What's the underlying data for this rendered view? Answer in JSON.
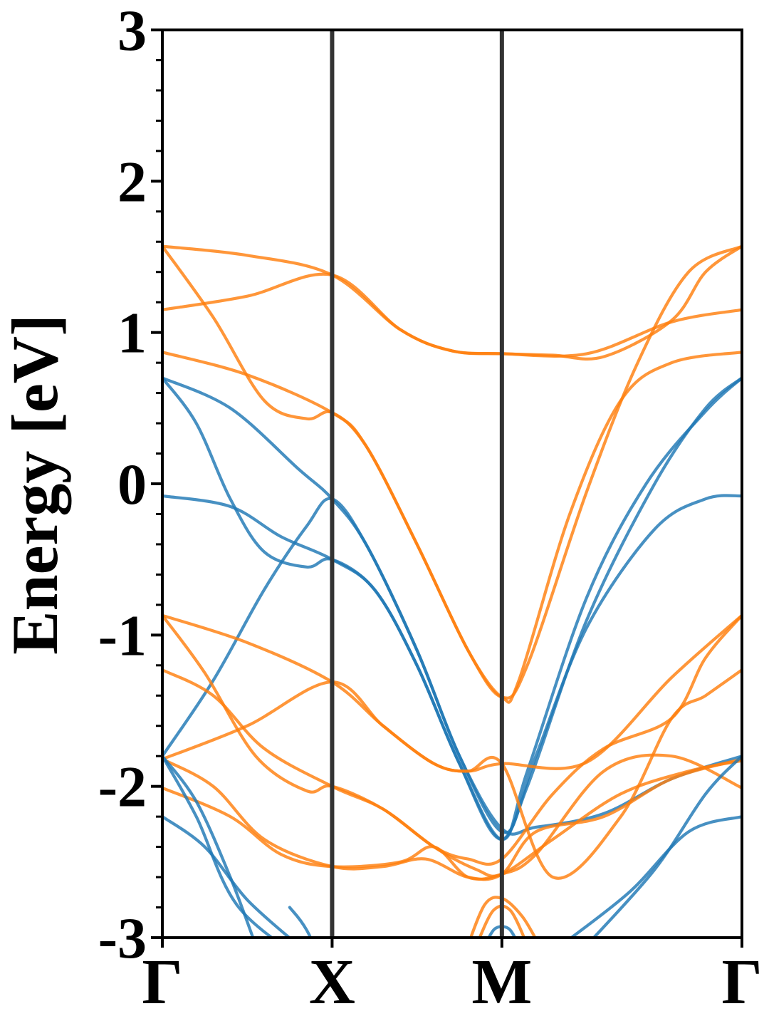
{
  "chart_data": {
    "type": "line",
    "title": "",
    "xlabel": "",
    "ylabel": "Energy [eV]",
    "ylim": [
      -3,
      3
    ],
    "y_ticks": [
      "3",
      "2",
      "1",
      "0",
      "-1",
      "-2",
      "-3"
    ],
    "y_tick_values": [
      3,
      2,
      1,
      0,
      -1,
      -2,
      -3
    ],
    "k_path": [
      {
        "label": "Γ",
        "pos": 0.0
      },
      {
        "label": "X",
        "pos": 1.0
      },
      {
        "label": "M",
        "pos": 2.0
      },
      {
        "label": "Γ",
        "pos": 3.414
      }
    ],
    "grid": false,
    "legend": "none",
    "colors": {
      "blue": "#1f77b4",
      "orange": "#ff7f0e",
      "kline": "#333333"
    },
    "series": [
      {
        "color": "orange",
        "points": [
          [
            0,
            1.57
          ],
          [
            0.5,
            1.51
          ],
          [
            1,
            1.38
          ],
          [
            1.4,
            1.02
          ],
          [
            1.7,
            0.88
          ],
          [
            2,
            0.86
          ],
          [
            2.5,
            0.86
          ],
          [
            3,
            1.07
          ],
          [
            3.414,
            1.15
          ]
        ]
      },
      {
        "color": "orange",
        "points": [
          [
            0,
            1.15
          ],
          [
            0.5,
            1.24
          ],
          [
            1,
            1.38
          ],
          [
            1.4,
            1.02
          ],
          [
            1.7,
            0.88
          ],
          [
            2,
            0.86
          ],
          [
            2.3,
            0.85
          ],
          [
            2.6,
            0.84
          ],
          [
            3,
            1.08
          ],
          [
            3.2,
            1.4
          ],
          [
            3.414,
            1.57
          ]
        ]
      },
      {
        "color": "orange",
        "points": [
          [
            0,
            0.87
          ],
          [
            0.5,
            0.72
          ],
          [
            1,
            0.47
          ],
          [
            1.2,
            0.25
          ],
          [
            1.5,
            -0.4
          ],
          [
            1.8,
            -1.1
          ],
          [
            2,
            -1.41
          ],
          [
            2.1,
            -1.3
          ],
          [
            2.4,
            -0.2
          ],
          [
            2.7,
            0.55
          ],
          [
            3,
            0.8
          ],
          [
            3.414,
            0.87
          ]
        ]
      },
      {
        "color": "orange",
        "points": [
          [
            0,
            1.57
          ],
          [
            0.3,
            1.1
          ],
          [
            0.6,
            0.55
          ],
          [
            0.85,
            0.43
          ],
          [
            1,
            0.47
          ],
          [
            1.2,
            0.25
          ],
          [
            1.5,
            -0.4
          ],
          [
            1.8,
            -1.1
          ],
          [
            2,
            -1.41
          ],
          [
            2.15,
            -1.2
          ],
          [
            2.5,
            -0.05
          ],
          [
            2.8,
            0.8
          ],
          [
            3.1,
            1.4
          ],
          [
            3.414,
            1.57
          ]
        ]
      },
      {
        "color": "blue",
        "points": [
          [
            0,
            0.7
          ],
          [
            0.4,
            0.5
          ],
          [
            0.8,
            0.1
          ],
          [
            1,
            -0.1
          ],
          [
            1.2,
            -0.4
          ],
          [
            1.5,
            -1.1
          ],
          [
            1.75,
            -1.8
          ],
          [
            2,
            -2.3
          ],
          [
            2.15,
            -2.0
          ],
          [
            2.5,
            -0.9
          ],
          [
            2.9,
            0.0
          ],
          [
            3.2,
            0.5
          ],
          [
            3.414,
            0.7
          ]
        ]
      },
      {
        "color": "blue",
        "points": [
          [
            0,
            0.7
          ],
          [
            0.2,
            0.4
          ],
          [
            0.4,
            -0.1
          ],
          [
            0.6,
            -0.45
          ],
          [
            0.85,
            -0.55
          ],
          [
            1,
            -0.5
          ],
          [
            1.25,
            -0.7
          ],
          [
            1.5,
            -1.2
          ],
          [
            1.75,
            -1.85
          ],
          [
            2,
            -2.35
          ],
          [
            2.15,
            -1.9
          ],
          [
            2.5,
            -0.75
          ],
          [
            2.85,
            0.0
          ],
          [
            3.2,
            0.48
          ],
          [
            3.414,
            0.7
          ]
        ]
      },
      {
        "color": "blue",
        "points": [
          [
            0,
            -0.08
          ],
          [
            0.4,
            -0.15
          ],
          [
            0.7,
            -0.35
          ],
          [
            1,
            -0.5
          ],
          [
            1.25,
            -0.7
          ],
          [
            1.5,
            -1.2
          ],
          [
            1.75,
            -1.85
          ],
          [
            2,
            -2.35
          ],
          [
            2.2,
            -1.8
          ],
          [
            2.5,
            -0.95
          ],
          [
            2.9,
            -0.3
          ],
          [
            3.2,
            -0.1
          ],
          [
            3.414,
            -0.08
          ]
        ]
      },
      {
        "color": "blue",
        "points": [
          [
            0,
            -1.8
          ],
          [
            0.3,
            -1.3
          ],
          [
            0.6,
            -0.7
          ],
          [
            0.85,
            -0.28
          ],
          [
            1,
            -0.1
          ],
          [
            1.2,
            -0.4
          ],
          [
            1.5,
            -1.1
          ],
          [
            1.75,
            -1.8
          ],
          [
            2,
            -2.28
          ],
          [
            2.2,
            -2.27
          ],
          [
            2.6,
            -2.18
          ],
          [
            3,
            -1.95
          ],
          [
            3.414,
            -1.8
          ]
        ]
      },
      {
        "color": "orange",
        "points": [
          [
            0,
            -0.87
          ],
          [
            0.5,
            -1.05
          ],
          [
            1,
            -1.31
          ],
          [
            1.3,
            -1.6
          ],
          [
            1.6,
            -1.85
          ],
          [
            1.8,
            -1.9
          ],
          [
            2,
            -1.85
          ],
          [
            2.5,
            -1.84
          ],
          [
            3,
            -1.28
          ],
          [
            3.414,
            -0.87
          ]
        ]
      },
      {
        "color": "orange",
        "points": [
          [
            0,
            -0.87
          ],
          [
            0.25,
            -1.25
          ],
          [
            0.55,
            -1.8
          ],
          [
            0.85,
            -2.03
          ],
          [
            1,
            -2.0
          ],
          [
            1.3,
            -2.15
          ],
          [
            1.6,
            -2.4
          ],
          [
            1.8,
            -2.48
          ],
          [
            2,
            -2.48
          ],
          [
            2.3,
            -2.05
          ],
          [
            2.6,
            -1.75
          ],
          [
            3,
            -1.55
          ],
          [
            3.2,
            -1.15
          ],
          [
            3.414,
            -0.87
          ]
        ]
      },
      {
        "color": "orange",
        "points": [
          [
            0,
            -1.23
          ],
          [
            0.3,
            -1.4
          ],
          [
            0.6,
            -1.75
          ],
          [
            1,
            -2.0
          ],
          [
            1.3,
            -2.15
          ],
          [
            1.6,
            -2.4
          ],
          [
            1.85,
            -2.55
          ],
          [
            2,
            -2.58
          ],
          [
            2.3,
            -2.35
          ],
          [
            2.7,
            -2.05
          ],
          [
            3.1,
            -1.9
          ],
          [
            3.414,
            -1.83
          ]
        ]
      },
      {
        "color": "orange",
        "points": [
          [
            0,
            -1.82
          ],
          [
            0.5,
            -1.6
          ],
          [
            1,
            -1.31
          ],
          [
            1.3,
            -1.6
          ],
          [
            1.6,
            -1.85
          ],
          [
            1.8,
            -1.9
          ],
          [
            2,
            -1.85
          ],
          [
            2.3,
            -2.6
          ],
          [
            2.7,
            -2.2
          ],
          [
            3,
            -1.55
          ],
          [
            3.2,
            -1.4
          ],
          [
            3.414,
            -1.23
          ]
        ]
      },
      {
        "color": "orange",
        "points": [
          [
            0,
            -1.82
          ],
          [
            0.3,
            -2.0
          ],
          [
            0.6,
            -2.35
          ],
          [
            1,
            -2.53
          ],
          [
            1.3,
            -2.53
          ],
          [
            1.55,
            -2.48
          ],
          [
            1.8,
            -2.6
          ],
          [
            2,
            -2.58
          ],
          [
            2.2,
            -2.3
          ],
          [
            2.6,
            -2.2
          ],
          [
            3,
            -1.95
          ],
          [
            3.414,
            -1.82
          ]
        ]
      },
      {
        "color": "orange",
        "points": [
          [
            0,
            -2.01
          ],
          [
            0.4,
            -2.2
          ],
          [
            0.7,
            -2.45
          ],
          [
            1,
            -2.53
          ],
          [
            1.4,
            -2.5
          ],
          [
            1.6,
            -2.4
          ],
          [
            1.8,
            -2.6
          ],
          [
            2,
            -2.58
          ],
          [
            2.2,
            -2.45
          ],
          [
            2.6,
            -1.9
          ],
          [
            3,
            -1.8
          ],
          [
            3.414,
            -2.01
          ]
        ]
      },
      {
        "color": "blue",
        "points": [
          [
            0,
            -1.8
          ],
          [
            0.2,
            -2.1
          ],
          [
            0.4,
            -2.6
          ],
          [
            0.55,
            -3.05
          ]
        ]
      },
      {
        "color": "blue",
        "points": [
          [
            0,
            -2.2
          ],
          [
            0.25,
            -2.4
          ],
          [
            0.5,
            -2.75
          ],
          [
            0.8,
            -3.05
          ]
        ]
      },
      {
        "color": "blue",
        "points": [
          [
            0,
            -1.8
          ],
          [
            0.2,
            -2.2
          ],
          [
            0.45,
            -2.8
          ],
          [
            0.9,
            -3.2
          ]
        ]
      },
      {
        "color": "blue",
        "points": [
          [
            0.75,
            -2.8
          ],
          [
            0.85,
            -2.95
          ],
          [
            1.0,
            -3.3
          ]
        ]
      },
      {
        "color": "blue",
        "points": [
          [
            2.35,
            -3.05
          ],
          [
            2.75,
            -2.7
          ],
          [
            3.1,
            -2.3
          ],
          [
            3.414,
            -2.2
          ]
        ]
      },
      {
        "color": "blue",
        "points": [
          [
            2.5,
            -3.05
          ],
          [
            2.9,
            -2.55
          ],
          [
            3.2,
            -2.05
          ],
          [
            3.414,
            -1.8
          ]
        ]
      },
      {
        "color": "blue",
        "points": [
          [
            1.9,
            -3.05
          ],
          [
            1.96,
            -2.94
          ],
          [
            2.04,
            -2.94
          ],
          [
            2.1,
            -3.05
          ]
        ]
      },
      {
        "color": "orange",
        "points": [
          [
            1.8,
            -3.05
          ],
          [
            1.9,
            -2.78
          ],
          [
            2.0,
            -2.74
          ],
          [
            2.12,
            -2.86
          ],
          [
            2.22,
            -3.05
          ]
        ]
      },
      {
        "color": "orange",
        "points": [
          [
            1.85,
            -3.05
          ],
          [
            1.95,
            -2.82
          ],
          [
            2.05,
            -2.82
          ],
          [
            2.15,
            -3.05
          ]
        ]
      }
    ]
  }
}
